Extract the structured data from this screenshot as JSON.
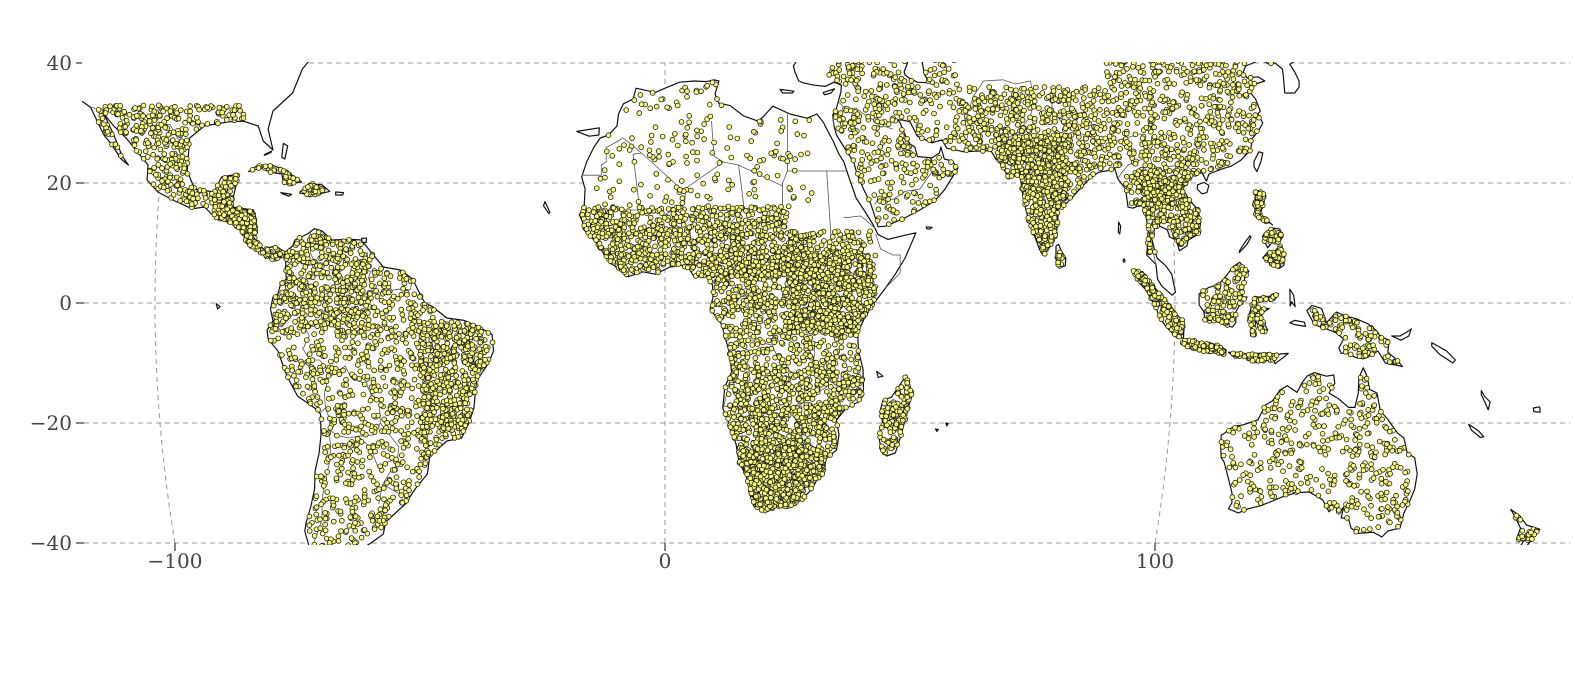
{
  "map": {
    "x_ticks": [
      {
        "value": -100,
        "label": "−100"
      },
      {
        "value": 0,
        "label": "0"
      },
      {
        "value": 100,
        "label": "100"
      }
    ],
    "y_ticks": [
      {
        "value": 40,
        "label": "40"
      },
      {
        "value": 20,
        "label": "20"
      },
      {
        "value": 0,
        "label": "0"
      },
      {
        "value": -20,
        "label": "−20"
      },
      {
        "value": -40,
        "label": "−40"
      }
    ],
    "lon_range": [
      -120,
      180
    ],
    "lat_range": [
      -40,
      40
    ],
    "point_fill": "#fbfb7a",
    "point_stroke": "#1a1a1a",
    "grid_color": "#999999"
  }
}
